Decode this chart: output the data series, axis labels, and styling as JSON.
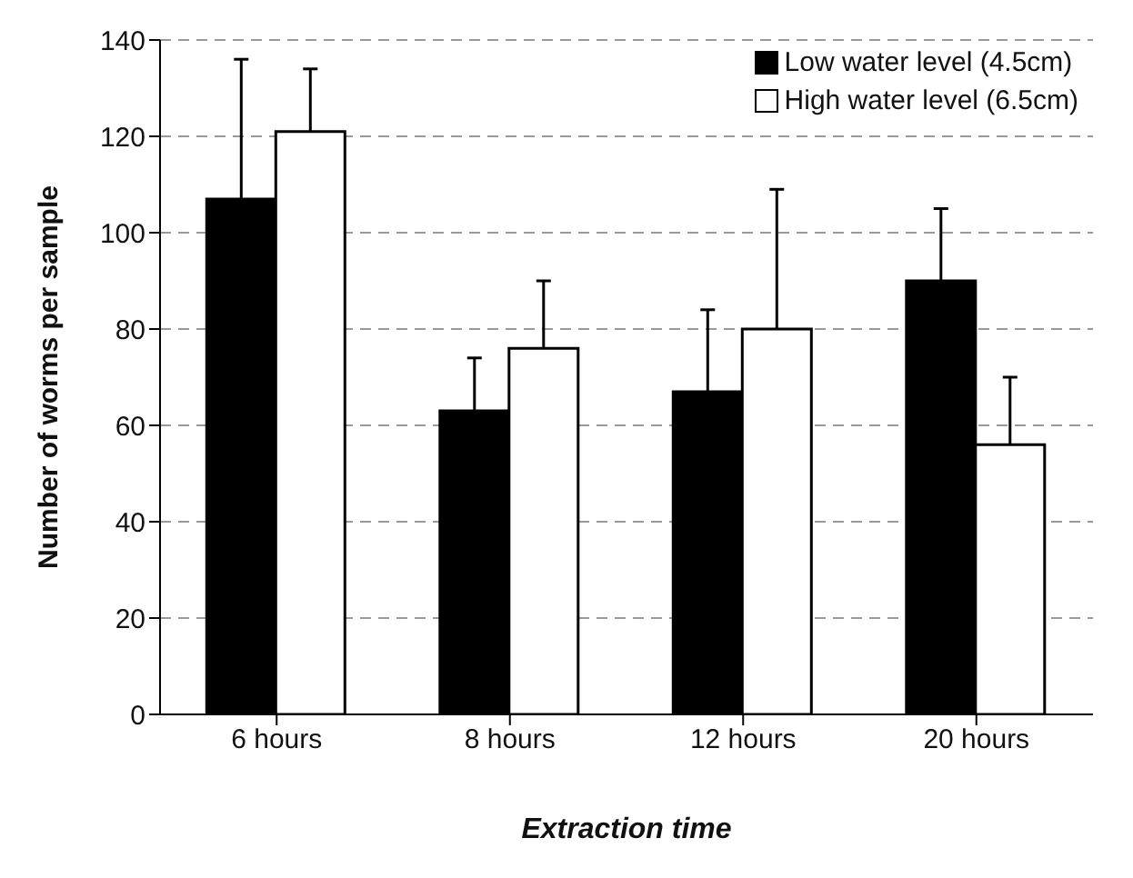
{
  "chart_data": {
    "type": "bar",
    "xlabel": "Extraction time",
    "ylabel": "Number of worms per sample",
    "categories": [
      "6 hours",
      "8 hours",
      "12 hours",
      "20 hours"
    ],
    "series": [
      {
        "name": "Low water level (4.5cm)",
        "color": "#000000",
        "values": [
          107,
          63,
          67,
          90
        ],
        "errors": [
          [
            107,
            136
          ],
          [
            63,
            74
          ],
          [
            67,
            84
          ],
          [
            90,
            105
          ]
        ]
      },
      {
        "name": "High water level (6.5cm)",
        "color": "#ffffff",
        "values": [
          121,
          76,
          80,
          56
        ],
        "errors": [
          [
            121,
            134
          ],
          [
            76,
            90
          ],
          [
            80,
            109
          ],
          [
            56,
            70
          ]
        ]
      }
    ],
    "ylim": [
      0,
      140
    ],
    "yticks": [
      0,
      20,
      40,
      60,
      80,
      100,
      120,
      140
    ],
    "grid": "y",
    "legend": "top right"
  }
}
